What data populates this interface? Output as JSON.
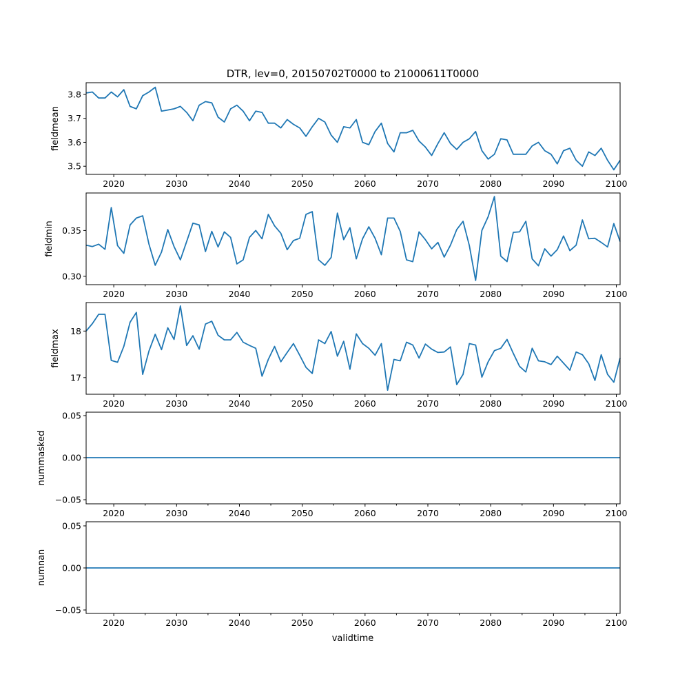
{
  "chart_data": {
    "type": "line",
    "title": "DTR, lev=0, 20150702T0000 to 21000611T0000",
    "xlabel": "validtime",
    "xlim": [
      2015.6,
      2100.6
    ],
    "x_start": 2015.6,
    "x_step": 1.0,
    "xticks": [
      2020,
      2030,
      2040,
      2050,
      2060,
      2070,
      2080,
      2090,
      2100
    ],
    "xticks_minor": [
      2025,
      2035,
      2045,
      2055,
      2065,
      2075,
      2085,
      2095
    ],
    "xtick_labels": [
      "2020",
      "2030",
      "2040",
      "2050",
      "2060",
      "2070",
      "2080",
      "2090",
      "2100"
    ],
    "line_color": "#1f77b4",
    "panels": [
      {
        "ylabel": "fieldmean",
        "ylim": [
          3.466,
          3.849
        ],
        "yticks": [
          3.5,
          3.6,
          3.7,
          3.8
        ],
        "ytick_labels": [
          "3.5",
          "3.6",
          "3.7",
          "3.8"
        ],
        "values": [
          3.806,
          3.81,
          3.785,
          3.785,
          3.81,
          3.79,
          3.82,
          3.75,
          3.74,
          3.795,
          3.81,
          3.83,
          3.73,
          3.735,
          3.74,
          3.75,
          3.725,
          3.69,
          3.755,
          3.77,
          3.765,
          3.705,
          3.685,
          3.74,
          3.755,
          3.73,
          3.69,
          3.73,
          3.725,
          3.68,
          3.68,
          3.66,
          3.695,
          3.675,
          3.66,
          3.625,
          3.665,
          3.7,
          3.685,
          3.63,
          3.6,
          3.665,
          3.66,
          3.695,
          3.6,
          3.59,
          3.645,
          3.68,
          3.595,
          3.56,
          3.64,
          3.64,
          3.65,
          3.605,
          3.58,
          3.545,
          3.595,
          3.64,
          3.595,
          3.57,
          3.6,
          3.615,
          3.645,
          3.565,
          3.53,
          3.55,
          3.615,
          3.61,
          3.55,
          3.55,
          3.55,
          3.585,
          3.6,
          3.565,
          3.55,
          3.51,
          3.565,
          3.575,
          3.525,
          3.5,
          3.56,
          3.545,
          3.575,
          3.525,
          3.485,
          3.525
        ]
      },
      {
        "ylabel": "fieldmin",
        "ylim": [
          0.2909,
          0.3909
        ],
        "yticks": [
          0.3,
          0.35
        ],
        "ytick_labels": [
          "0.30",
          "0.35"
        ],
        "values": [
          0.334,
          0.3325,
          0.335,
          0.3295,
          0.375,
          0.3335,
          0.325,
          0.356,
          0.3635,
          0.366,
          0.335,
          0.312,
          0.3265,
          0.351,
          0.3325,
          0.318,
          0.338,
          0.358,
          0.356,
          0.327,
          0.349,
          0.332,
          0.3485,
          0.3425,
          0.3135,
          0.318,
          0.3425,
          0.35,
          0.341,
          0.3675,
          0.355,
          0.347,
          0.329,
          0.339,
          0.3415,
          0.3675,
          0.3705,
          0.318,
          0.312,
          0.3205,
          0.369,
          0.34,
          0.353,
          0.319,
          0.341,
          0.354,
          0.3415,
          0.3235,
          0.3635,
          0.3635,
          0.349,
          0.318,
          0.316,
          0.3485,
          0.34,
          0.33,
          0.337,
          0.321,
          0.334,
          0.351,
          0.36,
          0.3335,
          0.2955,
          0.35,
          0.365,
          0.387,
          0.322,
          0.316,
          0.348,
          0.3485,
          0.36,
          0.319,
          0.3115,
          0.33,
          0.322,
          0.329,
          0.344,
          0.328,
          0.334,
          0.3615,
          0.341,
          0.3415,
          0.337,
          0.332,
          0.3575,
          0.338
        ]
      },
      {
        "ylabel": "fieldmax",
        "ylim": [
          16.642,
          18.612
        ],
        "yticks": [
          17,
          18
        ],
        "ytick_labels": [
          "17",
          "18"
        ],
        "values": [
          18.0,
          18.16,
          18.36,
          18.36,
          17.37,
          17.33,
          17.67,
          18.19,
          18.4,
          17.07,
          17.57,
          17.93,
          17.6,
          18.07,
          17.82,
          18.54,
          17.69,
          17.9,
          17.61,
          18.15,
          18.21,
          17.91,
          17.81,
          17.81,
          17.97,
          17.76,
          17.69,
          17.63,
          17.03,
          17.39,
          17.67,
          17.34,
          17.54,
          17.73,
          17.48,
          17.22,
          17.09,
          17.81,
          17.73,
          17.99,
          17.46,
          17.78,
          17.18,
          17.94,
          17.73,
          17.63,
          17.48,
          17.73,
          16.73,
          17.39,
          17.36,
          17.76,
          17.7,
          17.42,
          17.72,
          17.61,
          17.54,
          17.55,
          17.66,
          16.85,
          17.07,
          17.73,
          17.7,
          17.01,
          17.34,
          17.58,
          17.63,
          17.82,
          17.52,
          17.24,
          17.12,
          17.63,
          17.36,
          17.34,
          17.28,
          17.46,
          17.31,
          17.16,
          17.55,
          17.49,
          17.3,
          16.94,
          17.49,
          17.07,
          16.9,
          17.42
        ]
      },
      {
        "ylabel": "nummasked",
        "ylim": [
          -0.0549,
          0.0541
        ],
        "yticks": [
          -0.05,
          0.0,
          0.05
        ],
        "ytick_labels": [
          "−0.05",
          "0.00",
          "0.05"
        ],
        "constant_value": 0
      },
      {
        "ylabel": "numnan",
        "ylim": [
          -0.0541,
          0.0549
        ],
        "yticks": [
          -0.05,
          0.0,
          0.05
        ],
        "ytick_labels": [
          "−0.05",
          "0.00",
          "0.05"
        ],
        "constant_value": 0
      }
    ]
  }
}
